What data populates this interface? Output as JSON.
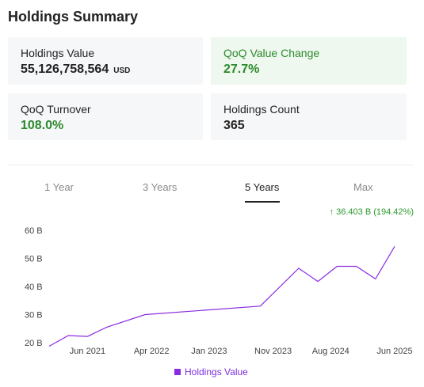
{
  "page_title": "Holdings Summary",
  "cards": {
    "holdings_value": {
      "label": "Holdings Value",
      "value": "55,126,758,564",
      "unit": "USD"
    },
    "qoq_value_change": {
      "label": "QoQ Value Change",
      "value": "27.7%"
    },
    "qoq_turnover": {
      "label": "QoQ Turnover",
      "value": "108.0%"
    },
    "holdings_count": {
      "label": "Holdings Count",
      "value": "365"
    }
  },
  "tabs": [
    {
      "label": "1 Year",
      "active": false
    },
    {
      "label": "3 Years",
      "active": false
    },
    {
      "label": "5 Years",
      "active": true
    },
    {
      "label": "Max",
      "active": false
    }
  ],
  "change_badge": {
    "arrow": "↑",
    "text": "36.403 B (194.42%)",
    "color": "#2e9a2e"
  },
  "colors": {
    "series": "#8a2be2",
    "positive": "#2e8a2e"
  },
  "chart_data": {
    "type": "line",
    "ylim": [
      18,
      62
    ],
    "y_ticks": [
      20,
      30,
      40,
      50,
      60
    ],
    "y_tick_labels": [
      "20 B",
      "30 B",
      "40 B",
      "50 B",
      "60 B"
    ],
    "x_labels": [
      "Jun 2021",
      "Apr 2022",
      "Jan 2023",
      "Nov 2023",
      "Aug 2024",
      "Jun 2025"
    ],
    "series": [
      {
        "name": "Holdings Value",
        "color": "#8a2be2",
        "points": [
          [
            "Dec 2020",
            18.7
          ],
          [
            "Mar 2021",
            22.5
          ],
          [
            "Jun 2021",
            22.2
          ],
          [
            "Sep 2021",
            25.5
          ],
          [
            "Mar 2022",
            30.0
          ],
          [
            "Sep 2023",
            33.0
          ],
          [
            "Mar 2024",
            46.5
          ],
          [
            "Jun 2024",
            41.8
          ],
          [
            "Sep 2024",
            47.2
          ],
          [
            "Dec 2024",
            47.2
          ],
          [
            "Mar 2025",
            42.7
          ],
          [
            "Jun 2025",
            54.3
          ]
        ]
      }
    ],
    "legend": "bottom"
  }
}
